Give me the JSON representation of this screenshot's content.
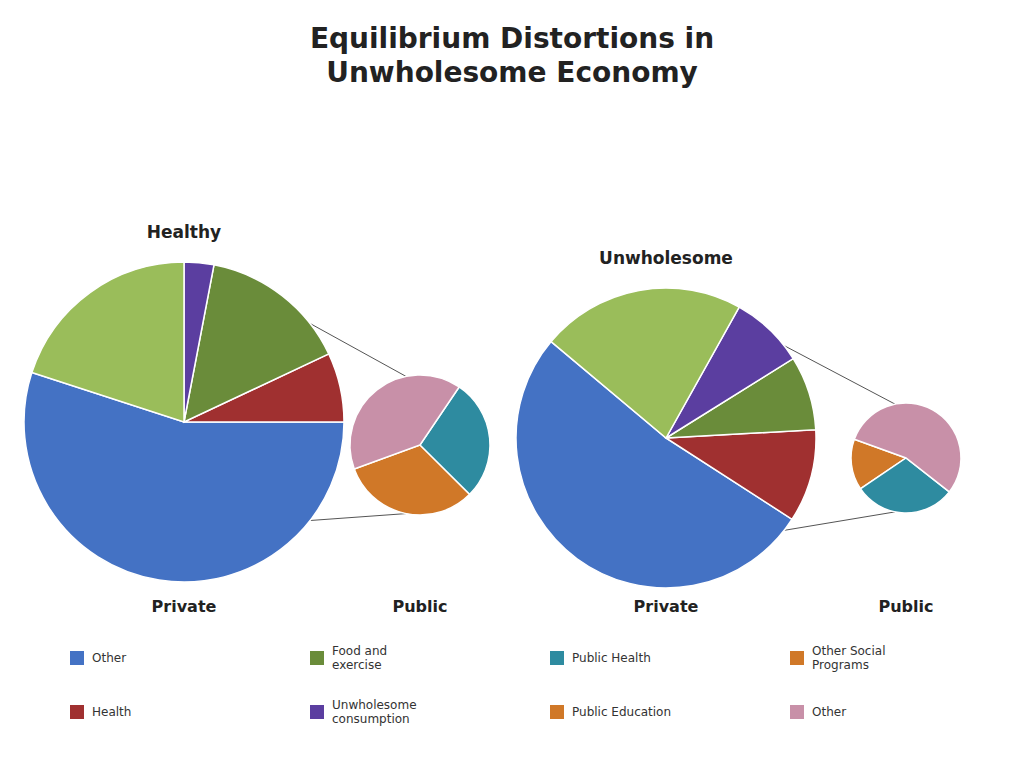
{
  "title": "Equilibrium Distortions in\nUnwholesome Economy",
  "legend": {
    "categories": [
      "Other",
      "Health",
      "Food and\nexercise",
      "Unwholesome\nconsumption",
      "Public Health",
      "Public Education",
      "Other Social\nPrograms",
      "Other"
    ],
    "colors": [
      "#4472C4",
      "#A03030",
      "#6A8C3A",
      "#5B3EA0",
      "#2E8BA0",
      "#D07828",
      "#D07828",
      "#C890A8"
    ]
  },
  "chart_data": [
    {
      "type": "pie",
      "title": "Private",
      "annotations": [
        "Healthy"
      ],
      "values": [
        55,
        7,
        15,
        3,
        20
      ],
      "colors": [
        "#4472C4",
        "#A03030",
        "#6A8C3A",
        "#5B3EA0",
        "#9ABD5A"
      ]
    },
    {
      "type": "pie",
      "title": "Public",
      "values": [
        32,
        28,
        40
      ],
      "colors": [
        "#D07828",
        "#2E8BA0",
        "#C890A8"
      ]
    },
    {
      "type": "pie",
      "title": "Private",
      "annotations": [
        "Unwholesome"
      ],
      "values": [
        52,
        10,
        8,
        8,
        22
      ],
      "colors": [
        "#4472C4",
        "#A03030",
        "#6A8C3A",
        "#5B3EA0",
        "#9ABD5A"
      ]
    },
    {
      "type": "pie",
      "title": "Public",
      "values": [
        15,
        30,
        55
      ],
      "colors": [
        "#D07828",
        "#2E8BA0",
        "#C890A8"
      ]
    }
  ]
}
